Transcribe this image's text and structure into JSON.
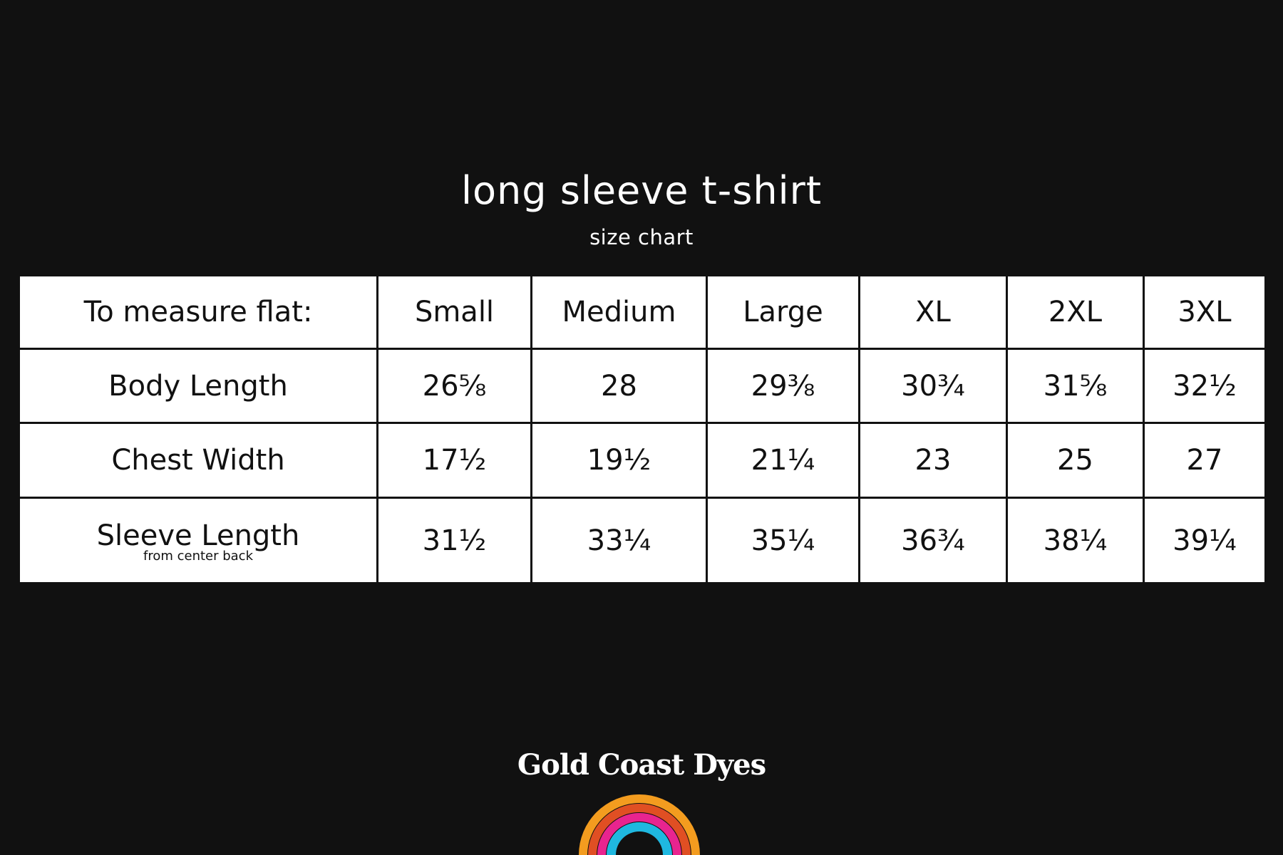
{
  "header": {
    "title": "long sleeve t-shirt",
    "subtitle": "size chart"
  },
  "table": {
    "columns": [
      "To measure flat:",
      "Small",
      "Medium",
      "Large",
      "XL",
      "2XL",
      "3XL"
    ],
    "rows": [
      {
        "label": "Body Length",
        "note": "",
        "values": [
          "26⅝",
          "28",
          "29⅜",
          "30¾",
          "31⅝",
          "32½"
        ]
      },
      {
        "label": "Chest Width",
        "note": "",
        "values": [
          "17½",
          "19½",
          "21¼",
          "23",
          "25",
          "27"
        ]
      },
      {
        "label": "Sleeve Length",
        "note": "from center back",
        "values": [
          "31½",
          "33¼",
          "35¼",
          "36¾",
          "38¼",
          "39¼"
        ]
      }
    ]
  },
  "brand": {
    "name": "Gold Coast Dyes",
    "rainbow_colors": [
      "#f39c1f",
      "#e04f23",
      "#e8248f",
      "#1fb8e0"
    ]
  }
}
